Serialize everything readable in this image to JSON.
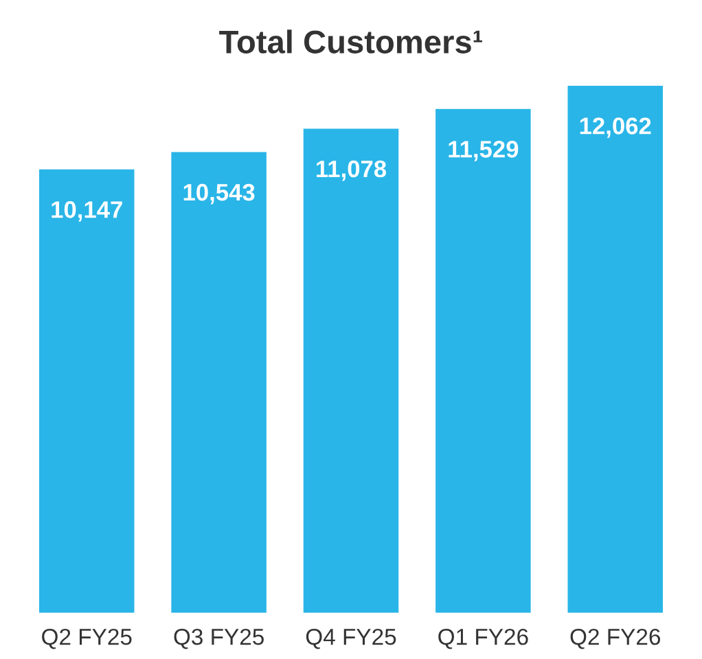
{
  "chart_data": {
    "type": "bar",
    "title": "Total Customers¹",
    "categories": [
      "Q2 FY25",
      "Q3 FY25",
      "Q4 FY25",
      "Q1 FY26",
      "Q2 FY26"
    ],
    "values": [
      10147,
      10543,
      11078,
      11529,
      12062
    ],
    "value_labels": [
      "10,147",
      "10,543",
      "11,078",
      "11,529",
      "12,062"
    ],
    "color": "#29b5e8",
    "grid": false,
    "legend": false
  }
}
